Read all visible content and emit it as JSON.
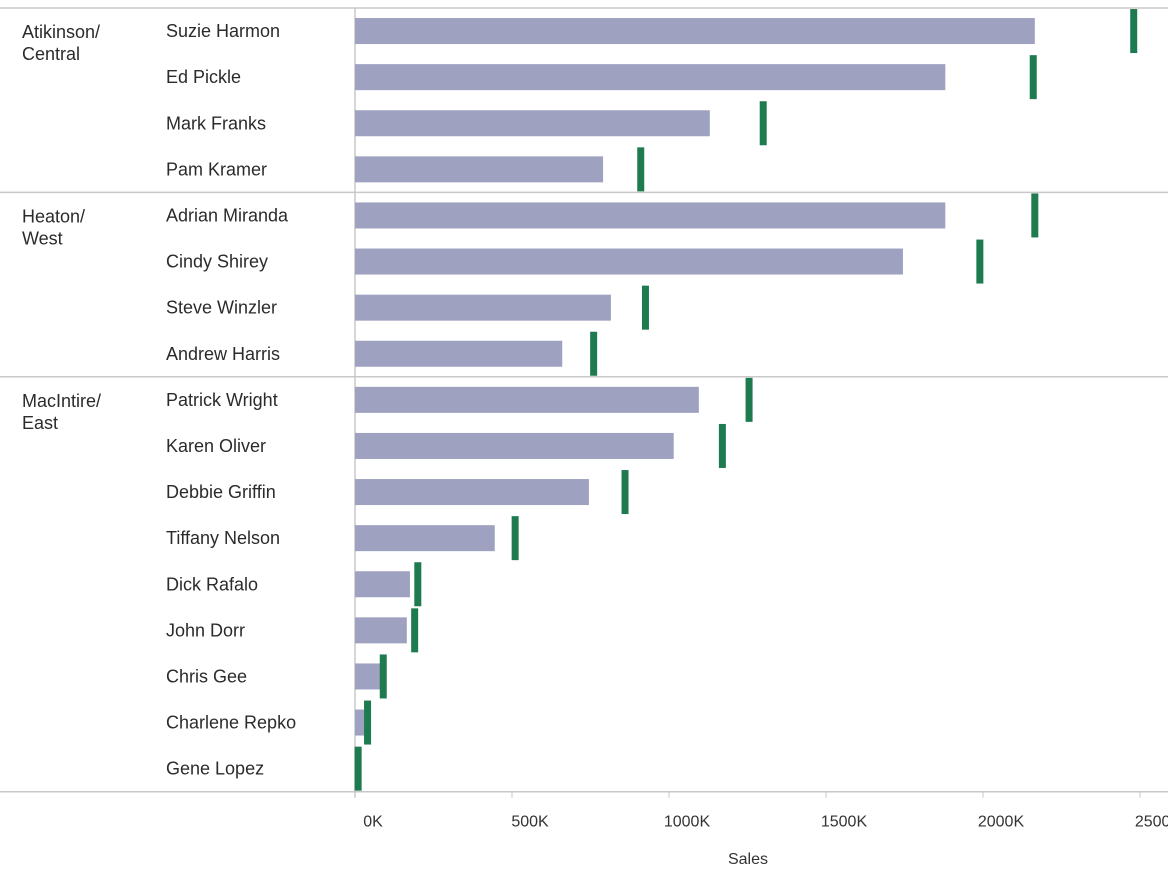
{
  "chart_data": {
    "type": "bar",
    "xlabel": "Sales",
    "xlim": [
      0,
      2500000
    ],
    "x_ticks": [
      0,
      500000,
      1000000,
      1500000,
      2000000,
      2500000
    ],
    "x_tick_labels": [
      "0K",
      "500K",
      "1000K",
      "1500K",
      "2000K",
      "2500K"
    ],
    "bar_color": "#9ea1bf",
    "target_color": "#1e7a4f",
    "groups": [
      {
        "label_lines": [
          "Atikinson/",
          "Central"
        ],
        "rows": [
          {
            "name": "Suzie Harmon",
            "sales": 2165000,
            "target": 2480000
          },
          {
            "name": "Ed Pickle",
            "sales": 1880000,
            "target": 2160000
          },
          {
            "name": "Mark Franks",
            "sales": 1130000,
            "target": 1300000
          },
          {
            "name": "Pam Kramer",
            "sales": 790000,
            "target": 910000
          }
        ]
      },
      {
        "label_lines": [
          "Heaton/",
          "West"
        ],
        "rows": [
          {
            "name": "Adrian Miranda",
            "sales": 1880000,
            "target": 2165000
          },
          {
            "name": "Cindy Shirey",
            "sales": 1745000,
            "target": 1990000
          },
          {
            "name": "Steve Winzler",
            "sales": 815000,
            "target": 925000
          },
          {
            "name": "Andrew Harris",
            "sales": 660000,
            "target": 760000
          }
        ]
      },
      {
        "label_lines": [
          "MacIntire/",
          "East"
        ],
        "rows": [
          {
            "name": "Patrick Wright",
            "sales": 1095000,
            "target": 1255000
          },
          {
            "name": "Karen Oliver",
            "sales": 1015000,
            "target": 1170000
          },
          {
            "name": "Debbie Griffin",
            "sales": 745000,
            "target": 860000
          },
          {
            "name": "Tiffany Nelson",
            "sales": 445000,
            "target": 510000
          },
          {
            "name": "Dick Rafalo",
            "sales": 175000,
            "target": 200000
          },
          {
            "name": "John Dorr",
            "sales": 165000,
            "target": 190000
          },
          {
            "name": "Chris Gee",
            "sales": 80000,
            "target": 90000
          },
          {
            "name": "Charlene Repko",
            "sales": 30000,
            "target": 40000
          },
          {
            "name": "Gene Lopez",
            "sales": 5000,
            "target": 10000
          }
        ]
      }
    ]
  }
}
